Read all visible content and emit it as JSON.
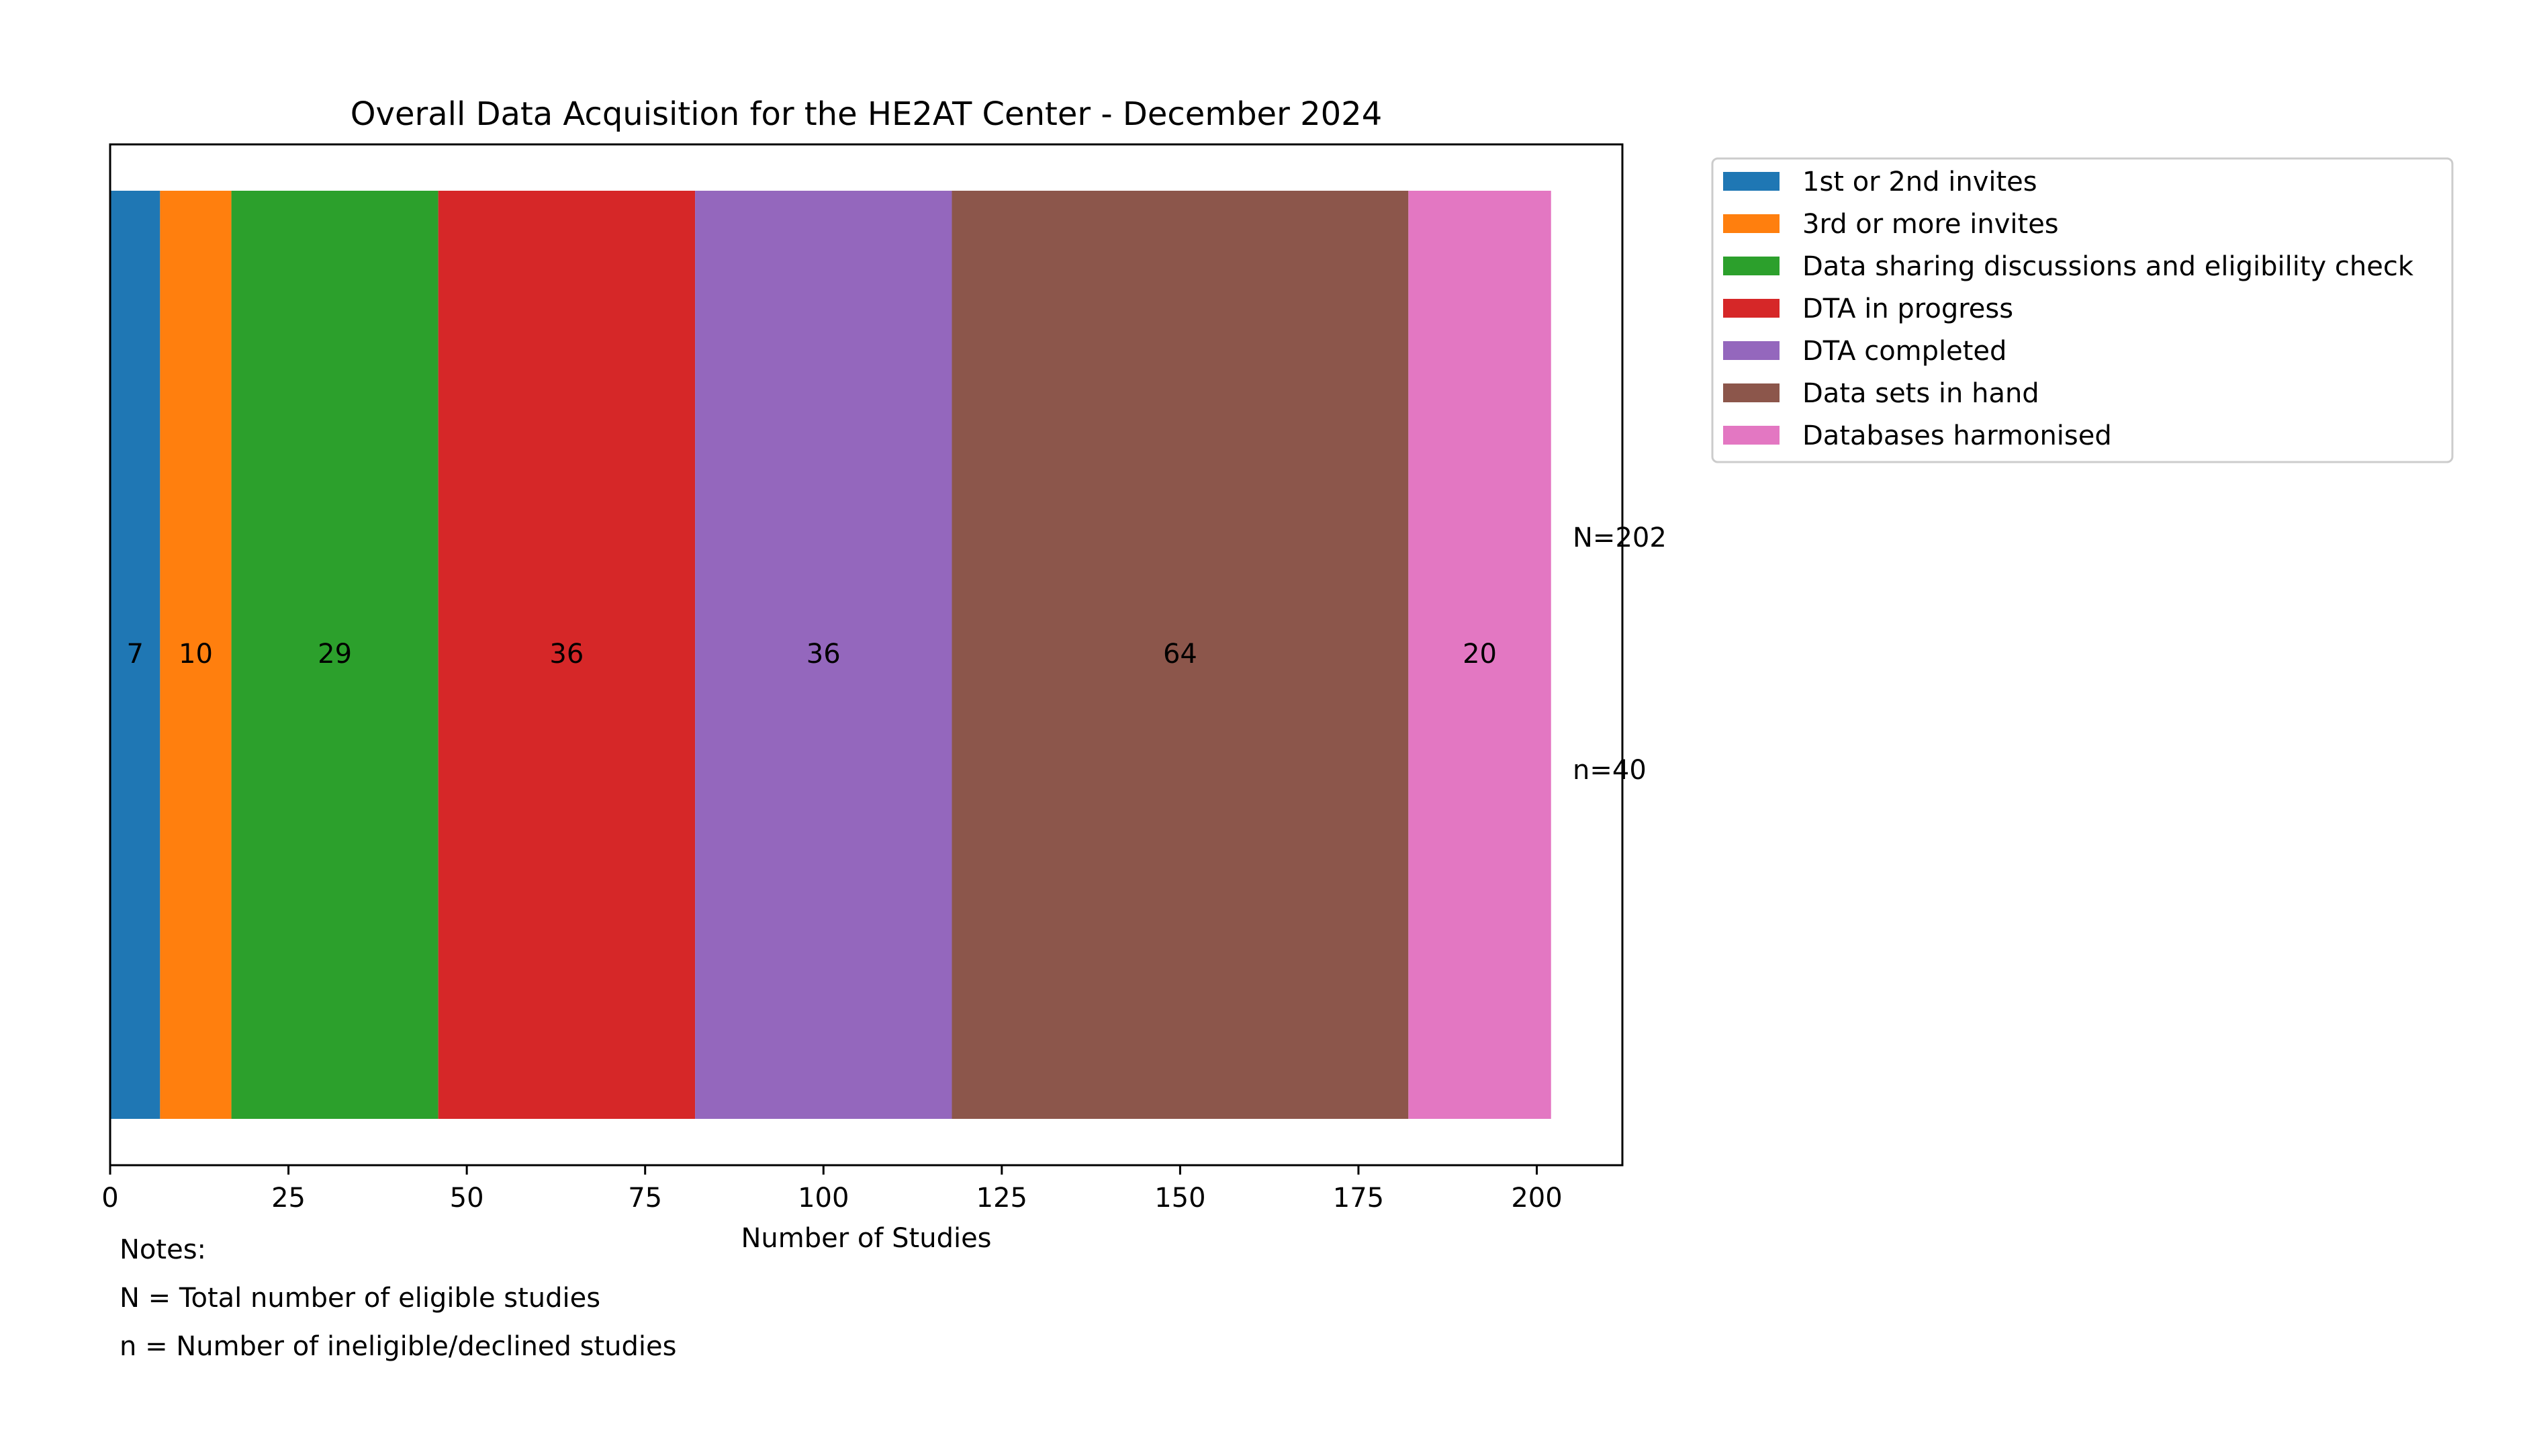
{
  "chart_data": {
    "type": "bar",
    "orientation": "horizontal",
    "stacked": true,
    "title": "Overall Data Acquisition for the HE2AT Center - December 2024",
    "xlabel": "Number of Studies",
    "ylabel": "",
    "xlim": [
      0,
      212
    ],
    "xticks": [
      "0",
      "25",
      "50",
      "75",
      "100",
      "125",
      "150",
      "175",
      "200"
    ],
    "grid": false,
    "legend_position": "outside-top-right",
    "series": [
      {
        "name": "1st or 2nd invites",
        "value": 7,
        "label": "7",
        "color": "#1f77b4"
      },
      {
        "name": "3rd or more invites",
        "value": 10,
        "label": "10",
        "color": "#ff7f0e"
      },
      {
        "name": "Data sharing discussions and eligibility check",
        "value": 29,
        "label": "29",
        "color": "#2ca02c"
      },
      {
        "name": "DTA in progress",
        "value": 36,
        "label": "36",
        "color": "#d62728"
      },
      {
        "name": "DTA completed",
        "value": 36,
        "label": "36",
        "color": "#9467bd"
      },
      {
        "name": "Data sets in hand",
        "value": 64,
        "label": "64",
        "color": "#8c564b"
      },
      {
        "name": "Databases harmonised",
        "value": 20,
        "label": "20",
        "color": "#e377c2"
      }
    ],
    "annotations": [
      "N=202",
      "n=40"
    ]
  },
  "notes": [
    "Notes:",
    "N = Total number of eligible studies",
    "n = Number of ineligible/declined studies"
  ]
}
